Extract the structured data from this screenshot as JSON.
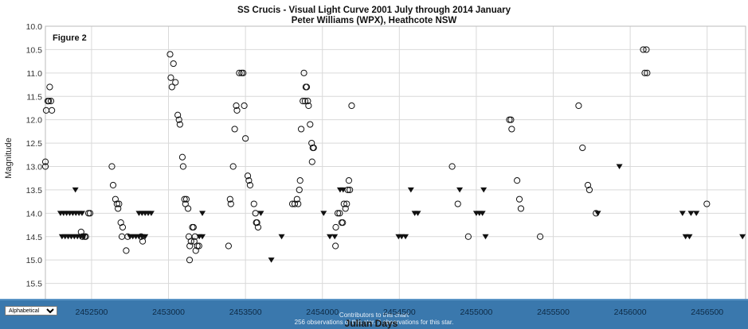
{
  "page": {
    "figure_label": "Figure 2",
    "bottom_bar": {
      "select_value": "Alphabetical",
      "line1": "Contributors to this chart",
      "line2": "256 observations of this star. ? observations for this star."
    }
  },
  "chart_data": {
    "type": "scatter",
    "title": "SS Crucis - Visual Light Curve 2001 July through 2014 January",
    "subtitle": "Peter Williams (WPX), Heathcote NSW",
    "xlabel": "Julian Days",
    "ylabel": "Magnitude",
    "xlim": [
      2452200,
      2456750
    ],
    "ylim": [
      10.0,
      16.0
    ],
    "y_inverted": true,
    "grid": true,
    "x_ticks": [
      2452500,
      2453000,
      2453500,
      2454000,
      2454500,
      2455000,
      2455500,
      2456000,
      2456500
    ],
    "y_ticks": [
      10.0,
      10.5,
      11.0,
      11.5,
      12.0,
      12.5,
      13.0,
      13.5,
      14.0,
      14.5,
      15.0,
      15.5
    ],
    "x_tick_labels": [
      "2452500",
      "2453000",
      "2453500",
      "2454000",
      "2454500",
      "2455000",
      "2455500",
      "2456000",
      "2456500"
    ],
    "y_tick_labels": [
      "10.0",
      "10.5",
      "11.0",
      "11.5",
      "12.0",
      "12.5",
      "13.0",
      "13.5",
      "14.0",
      "14.5",
      "15.0",
      "15.5"
    ],
    "series": [
      {
        "marker": "open-circle",
        "points": [
          [
            2452200,
            12.9
          ],
          [
            2452200,
            13.0
          ],
          [
            2452205,
            11.8
          ],
          [
            2452215,
            11.6
          ],
          [
            2452222,
            11.6
          ],
          [
            2452228,
            11.3
          ],
          [
            2452236,
            11.6
          ],
          [
            2452242,
            11.8
          ],
          [
            2452432,
            14.4
          ],
          [
            2452440,
            14.5
          ],
          [
            2452455,
            14.5
          ],
          [
            2452462,
            14.5
          ],
          [
            2452480,
            14.0
          ],
          [
            2452490,
            14.0
          ],
          [
            2452632,
            13.0
          ],
          [
            2452640,
            13.4
          ],
          [
            2452655,
            13.7
          ],
          [
            2452665,
            13.8
          ],
          [
            2452672,
            13.9
          ],
          [
            2452678,
            13.8
          ],
          [
            2452690,
            14.2
          ],
          [
            2452702,
            14.3
          ],
          [
            2452697,
            14.5
          ],
          [
            2452725,
            14.8
          ],
          [
            2452735,
            14.5
          ],
          [
            2452822,
            14.5
          ],
          [
            2452832,
            14.6
          ],
          [
            2453010,
            10.6
          ],
          [
            2453015,
            11.1
          ],
          [
            2453022,
            11.3
          ],
          [
            2453032,
            10.8
          ],
          [
            2453045,
            11.2
          ],
          [
            2453060,
            11.9
          ],
          [
            2453068,
            12.0
          ],
          [
            2453074,
            12.1
          ],
          [
            2453090,
            12.8
          ],
          [
            2453095,
            13.0
          ],
          [
            2453104,
            13.7
          ],
          [
            2453110,
            13.8
          ],
          [
            2453116,
            13.7
          ],
          [
            2453127,
            13.9
          ],
          [
            2453132,
            14.5
          ],
          [
            2453138,
            14.7
          ],
          [
            2453146,
            14.6
          ],
          [
            2453155,
            14.3
          ],
          [
            2453162,
            14.3
          ],
          [
            2453167,
            14.6
          ],
          [
            2453177,
            14.8
          ],
          [
            2453187,
            14.7
          ],
          [
            2453137,
            15.0
          ],
          [
            2453172,
            14.5
          ],
          [
            2453198,
            14.7
          ],
          [
            2453390,
            14.7
          ],
          [
            2453400,
            13.7
          ],
          [
            2453405,
            13.8
          ],
          [
            2453420,
            13.0
          ],
          [
            2453430,
            12.2
          ],
          [
            2453440,
            11.7
          ],
          [
            2453445,
            11.8
          ],
          [
            2453460,
            11.0
          ],
          [
            2453475,
            11.0
          ],
          [
            2453485,
            11.0
          ],
          [
            2453492,
            11.7
          ],
          [
            2453500,
            12.4
          ],
          [
            2453515,
            13.2
          ],
          [
            2453522,
            13.3
          ],
          [
            2453530,
            13.4
          ],
          [
            2453555,
            13.8
          ],
          [
            2453565,
            14.0
          ],
          [
            2453570,
            14.2
          ],
          [
            2453575,
            14.2
          ],
          [
            2453582,
            14.3
          ],
          [
            2453805,
            13.8
          ],
          [
            2453820,
            13.8
          ],
          [
            2453835,
            13.7
          ],
          [
            2453842,
            13.8
          ],
          [
            2453850,
            13.5
          ],
          [
            2453855,
            13.3
          ],
          [
            2453862,
            12.2
          ],
          [
            2453873,
            11.6
          ],
          [
            2453880,
            11.0
          ],
          [
            2453887,
            11.6
          ],
          [
            2453892,
            11.3
          ],
          [
            2453898,
            11.3
          ],
          [
            2453905,
            11.6
          ],
          [
            2453910,
            11.7
          ],
          [
            2453920,
            12.1
          ],
          [
            2453930,
            12.5
          ],
          [
            2453938,
            12.6
          ],
          [
            2453943,
            12.6
          ],
          [
            2453933,
            12.9
          ],
          [
            2454085,
            14.7
          ],
          [
            2454100,
            14.0
          ],
          [
            2454112,
            14.0
          ],
          [
            2454125,
            14.2
          ],
          [
            2454140,
            13.8
          ],
          [
            2454150,
            13.9
          ],
          [
            2454158,
            13.8
          ],
          [
            2454165,
            13.5
          ],
          [
            2454172,
            13.3
          ],
          [
            2454178,
            13.5
          ],
          [
            2454190,
            11.7
          ],
          [
            2454087,
            14.3
          ],
          [
            2454132,
            14.2
          ],
          [
            2454843,
            13.0
          ],
          [
            2454880,
            13.8
          ],
          [
            2454948,
            14.5
          ],
          [
            2455215,
            12.0
          ],
          [
            2455225,
            12.0
          ],
          [
            2455230,
            12.2
          ],
          [
            2455265,
            13.3
          ],
          [
            2455280,
            13.7
          ],
          [
            2455290,
            13.9
          ],
          [
            2455415,
            14.5
          ],
          [
            2455665,
            11.7
          ],
          [
            2455690,
            12.6
          ],
          [
            2455725,
            13.4
          ],
          [
            2455735,
            13.5
          ],
          [
            2455778,
            14.0
          ],
          [
            2456085,
            10.5
          ],
          [
            2456105,
            10.5
          ],
          [
            2456095,
            11.0
          ],
          [
            2456110,
            11.0
          ],
          [
            2456498,
            13.8
          ]
        ]
      },
      {
        "marker": "filled-triangle-down",
        "points": [
          [
            2452395,
            13.5
          ],
          [
            2452298,
            14.0
          ],
          [
            2452318,
            14.0
          ],
          [
            2452338,
            14.0
          ],
          [
            2452358,
            14.0
          ],
          [
            2452378,
            14.0
          ],
          [
            2452398,
            14.0
          ],
          [
            2452418,
            14.0
          ],
          [
            2452438,
            14.0
          ],
          [
            2452308,
            14.5
          ],
          [
            2452328,
            14.5
          ],
          [
            2452348,
            14.5
          ],
          [
            2452368,
            14.5
          ],
          [
            2452388,
            14.5
          ],
          [
            2452408,
            14.5
          ],
          [
            2452428,
            14.5
          ],
          [
            2452448,
            14.5
          ],
          [
            2452808,
            14.0
          ],
          [
            2452828,
            14.0
          ],
          [
            2452848,
            14.0
          ],
          [
            2452868,
            14.0
          ],
          [
            2452888,
            14.0
          ],
          [
            2452750,
            14.5
          ],
          [
            2452768,
            14.5
          ],
          [
            2452788,
            14.5
          ],
          [
            2452808,
            14.5
          ],
          [
            2452828,
            14.5
          ],
          [
            2452848,
            14.5
          ],
          [
            2453220,
            14.0
          ],
          [
            2453200,
            14.5
          ],
          [
            2453220,
            14.5
          ],
          [
            2453600,
            14.0
          ],
          [
            2453735,
            14.5
          ],
          [
            2453668,
            15.0
          ],
          [
            2454080,
            14.5
          ],
          [
            2454115,
            13.5
          ],
          [
            2454135,
            13.5
          ],
          [
            2454008,
            14.0
          ],
          [
            2454048,
            14.5
          ],
          [
            2454495,
            14.5
          ],
          [
            2454515,
            14.5
          ],
          [
            2454540,
            14.5
          ],
          [
            2454575,
            13.5
          ],
          [
            2454600,
            14.0
          ],
          [
            2454620,
            14.0
          ],
          [
            2454892,
            13.5
          ],
          [
            2455000,
            14.0
          ],
          [
            2455020,
            14.0
          ],
          [
            2455040,
            14.0
          ],
          [
            2455048,
            13.5
          ],
          [
            2455060,
            14.5
          ],
          [
            2455790,
            14.0
          ],
          [
            2455930,
            13.0
          ],
          [
            2456340,
            14.0
          ],
          [
            2456360,
            14.5
          ],
          [
            2456385,
            14.5
          ],
          [
            2456395,
            14.0
          ],
          [
            2456430,
            14.0
          ],
          [
            2456730,
            14.5
          ]
        ]
      }
    ]
  }
}
